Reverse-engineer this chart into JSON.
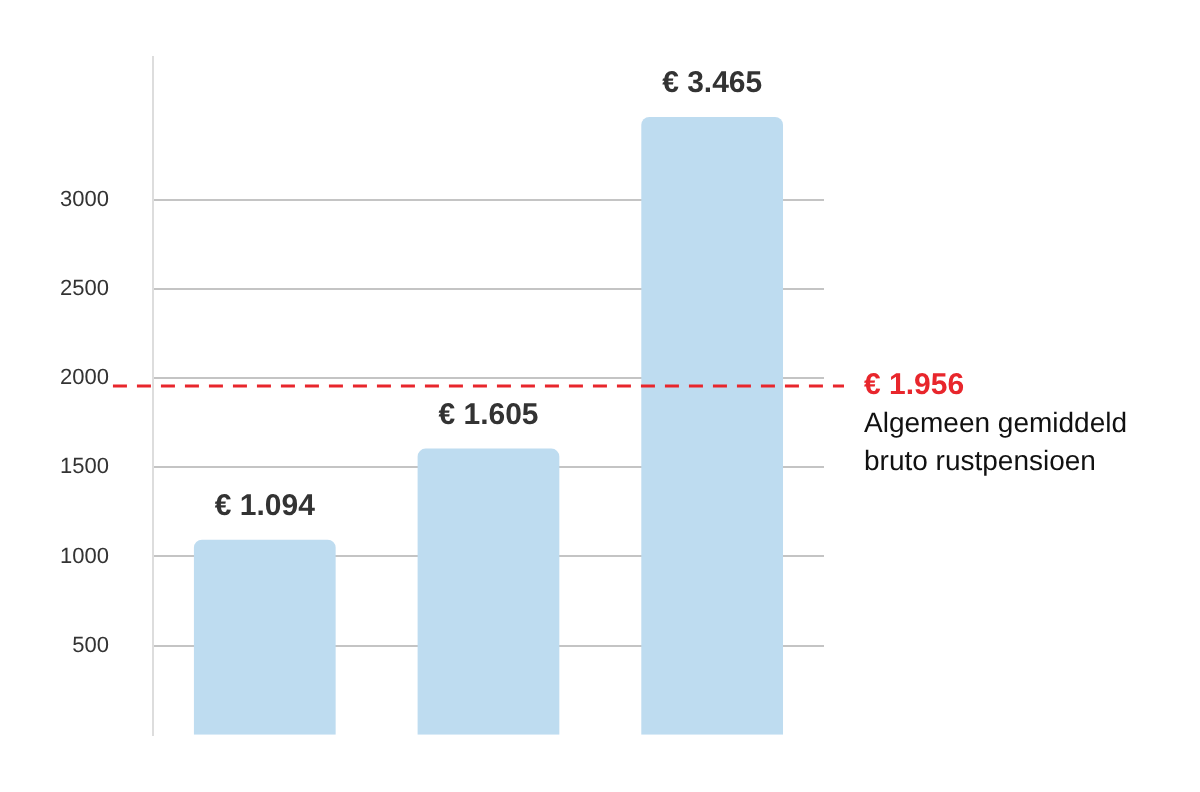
{
  "chart_data": {
    "type": "bar",
    "categories": [
      null,
      null,
      null
    ],
    "values": [
      1094,
      1605,
      3465
    ],
    "color": "#bedcf0",
    "value_labels": [
      "€ 1.094",
      "€ 1.605",
      "€ 3.465"
    ],
    "ylim": [
      0,
      3800
    ],
    "yticks": [
      500,
      1000,
      1500,
      2000,
      2500,
      3000
    ],
    "grid": "y",
    "legend": false,
    "ref_lines": [
      {
        "axis": "y",
        "value": 1956,
        "label": "€ 1.956",
        "color": "#e8262c",
        "line_style": "dashed"
      }
    ],
    "annotations": [
      "Algemeen gemiddeld bruto rustpensioen"
    ]
  }
}
